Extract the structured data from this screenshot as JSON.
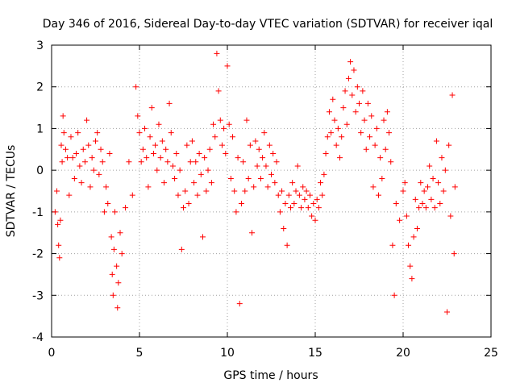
{
  "chart_data": {
    "type": "scatter",
    "title": "Day 346 of 2016, Sidereal Day-to-day VTEC variation (SDTVAR) for receiver iqal",
    "xlabel": "GPS time / hours",
    "ylabel": "SDTVAR / TECUs",
    "xlim": [
      0,
      25
    ],
    "ylim": [
      -4,
      3
    ],
    "xticks": [
      "0",
      "5",
      "10",
      "15",
      "20",
      "25"
    ],
    "yticks": [
      "-4",
      "-3",
      "-2",
      "-1",
      "0",
      "1",
      "2",
      "3"
    ],
    "grid": true,
    "marker": "+",
    "series": [
      {
        "name": "iqal",
        "color": "#ff0000",
        "points": [
          [
            0.2,
            -1.0
          ],
          [
            0.3,
            -0.5
          ],
          [
            0.35,
            -1.3
          ],
          [
            0.4,
            -1.8
          ],
          [
            0.45,
            -2.1
          ],
          [
            0.5,
            -1.2
          ],
          [
            0.55,
            0.6
          ],
          [
            0.6,
            0.2
          ],
          [
            0.65,
            1.3
          ],
          [
            0.7,
            0.9
          ],
          [
            0.8,
            0.5
          ],
          [
            0.9,
            0.3
          ],
          [
            1.0,
            -0.6
          ],
          [
            1.1,
            0.8
          ],
          [
            1.2,
            0.3
          ],
          [
            1.3,
            -0.2
          ],
          [
            1.4,
            0.4
          ],
          [
            1.5,
            0.9
          ],
          [
            1.6,
            0.1
          ],
          [
            1.7,
            -0.3
          ],
          [
            1.8,
            0.5
          ],
          [
            1.9,
            0.2
          ],
          [
            2.0,
            1.2
          ],
          [
            2.1,
            0.6
          ],
          [
            2.2,
            -0.4
          ],
          [
            2.3,
            0.3
          ],
          [
            2.4,
            0.0
          ],
          [
            2.5,
            0.7
          ],
          [
            2.6,
            0.9
          ],
          [
            2.7,
            -0.1
          ],
          [
            2.8,
            0.5
          ],
          [
            2.9,
            0.2
          ],
          [
            3.0,
            -1.0
          ],
          [
            3.1,
            -0.4
          ],
          [
            3.2,
            -0.8
          ],
          [
            3.3,
            0.4
          ],
          [
            3.4,
            -1.6
          ],
          [
            3.45,
            -2.5
          ],
          [
            3.5,
            -3.0
          ],
          [
            3.55,
            -1.9
          ],
          [
            3.6,
            -1.0
          ],
          [
            3.7,
            -2.3
          ],
          [
            3.75,
            -3.3
          ],
          [
            3.8,
            -2.7
          ],
          [
            3.9,
            -1.5
          ],
          [
            4.0,
            -2.0
          ],
          [
            4.2,
            -0.9
          ],
          [
            4.4,
            0.2
          ],
          [
            4.6,
            -0.6
          ],
          [
            4.8,
            2.0
          ],
          [
            4.9,
            1.3
          ],
          [
            5.0,
            0.9
          ],
          [
            5.1,
            0.2
          ],
          [
            5.2,
            0.5
          ],
          [
            5.3,
            1.0
          ],
          [
            5.4,
            0.3
          ],
          [
            5.5,
            -0.4
          ],
          [
            5.6,
            0.8
          ],
          [
            5.7,
            1.5
          ],
          [
            5.8,
            0.4
          ],
          [
            5.9,
            0.6
          ],
          [
            6.0,
            0.0
          ],
          [
            6.1,
            1.1
          ],
          [
            6.2,
            0.3
          ],
          [
            6.3,
            0.7
          ],
          [
            6.4,
            -0.3
          ],
          [
            6.5,
            0.5
          ],
          [
            6.6,
            0.2
          ],
          [
            6.7,
            1.6
          ],
          [
            6.8,
            0.9
          ],
          [
            6.9,
            0.1
          ],
          [
            7.0,
            -0.2
          ],
          [
            7.1,
            0.4
          ],
          [
            7.2,
            -0.6
          ],
          [
            7.3,
            0.0
          ],
          [
            7.4,
            -1.9
          ],
          [
            7.5,
            -0.9
          ],
          [
            7.6,
            -0.5
          ],
          [
            7.7,
            0.6
          ],
          [
            7.8,
            -0.8
          ],
          [
            7.9,
            0.2
          ],
          [
            8.0,
            0.7
          ],
          [
            8.1,
            -0.3
          ],
          [
            8.2,
            0.2
          ],
          [
            8.3,
            -0.6
          ],
          [
            8.4,
            0.4
          ],
          [
            8.5,
            -0.1
          ],
          [
            8.6,
            -1.6
          ],
          [
            8.7,
            0.3
          ],
          [
            8.8,
            -0.5
          ],
          [
            8.9,
            0.0
          ],
          [
            9.0,
            0.5
          ],
          [
            9.1,
            -0.3
          ],
          [
            9.2,
            1.1
          ],
          [
            9.3,
            0.8
          ],
          [
            9.4,
            2.8
          ],
          [
            9.5,
            1.9
          ],
          [
            9.6,
            1.2
          ],
          [
            9.7,
            0.6
          ],
          [
            9.8,
            1.0
          ],
          [
            9.9,
            0.4
          ],
          [
            10.0,
            2.5
          ],
          [
            10.1,
            1.1
          ],
          [
            10.2,
            -0.2
          ],
          [
            10.3,
            0.8
          ],
          [
            10.4,
            -0.5
          ],
          [
            10.5,
            -1.0
          ],
          [
            10.6,
            0.3
          ],
          [
            10.7,
            -3.2
          ],
          [
            10.8,
            -0.8
          ],
          [
            10.9,
            0.2
          ],
          [
            11.0,
            -0.5
          ],
          [
            11.1,
            1.2
          ],
          [
            11.2,
            -0.2
          ],
          [
            11.3,
            0.6
          ],
          [
            11.4,
            -1.5
          ],
          [
            11.5,
            -0.4
          ],
          [
            11.6,
            0.7
          ],
          [
            11.7,
            0.1
          ],
          [
            11.8,
            0.5
          ],
          [
            11.9,
            -0.2
          ],
          [
            12.0,
            0.3
          ],
          [
            12.1,
            0.9
          ],
          [
            12.2,
            0.1
          ],
          [
            12.3,
            -0.4
          ],
          [
            12.4,
            0.6
          ],
          [
            12.5,
            -0.1
          ],
          [
            12.6,
            0.4
          ],
          [
            12.7,
            -0.3
          ],
          [
            12.8,
            0.2
          ],
          [
            12.9,
            -0.6
          ],
          [
            13.0,
            -1.0
          ],
          [
            13.1,
            -0.5
          ],
          [
            13.2,
            -1.4
          ],
          [
            13.3,
            -0.8
          ],
          [
            13.4,
            -1.8
          ],
          [
            13.5,
            -0.6
          ],
          [
            13.6,
            -0.9
          ],
          [
            13.7,
            -0.3
          ],
          [
            13.8,
            -0.8
          ],
          [
            13.9,
            -0.5
          ],
          [
            14.0,
            0.1
          ],
          [
            14.1,
            -0.6
          ],
          [
            14.2,
            -0.9
          ],
          [
            14.3,
            -0.4
          ],
          [
            14.4,
            -0.7
          ],
          [
            14.5,
            -0.5
          ],
          [
            14.6,
            -0.9
          ],
          [
            14.7,
            -0.6
          ],
          [
            14.8,
            -1.1
          ],
          [
            14.9,
            -0.8
          ],
          [
            15.0,
            -1.2
          ],
          [
            15.1,
            -0.7
          ],
          [
            15.2,
            -0.9
          ],
          [
            15.3,
            -0.3
          ],
          [
            15.4,
            -0.6
          ],
          [
            15.5,
            -0.1
          ],
          [
            15.6,
            0.4
          ],
          [
            15.7,
            0.8
          ],
          [
            15.8,
            1.4
          ],
          [
            15.9,
            0.9
          ],
          [
            16.0,
            1.7
          ],
          [
            16.1,
            1.2
          ],
          [
            16.2,
            0.6
          ],
          [
            16.3,
            1.0
          ],
          [
            16.4,
            0.3
          ],
          [
            16.5,
            0.8
          ],
          [
            16.6,
            1.5
          ],
          [
            16.7,
            1.9
          ],
          [
            16.8,
            1.1
          ],
          [
            16.9,
            2.2
          ],
          [
            17.0,
            2.6
          ],
          [
            17.1,
            1.8
          ],
          [
            17.2,
            2.4
          ],
          [
            17.3,
            1.4
          ],
          [
            17.4,
            2.0
          ],
          [
            17.5,
            1.6
          ],
          [
            17.6,
            0.9
          ],
          [
            17.7,
            1.9
          ],
          [
            17.8,
            1.2
          ],
          [
            17.9,
            0.5
          ],
          [
            18.0,
            1.6
          ],
          [
            18.1,
            0.8
          ],
          [
            18.2,
            1.3
          ],
          [
            18.3,
            -0.4
          ],
          [
            18.4,
            0.6
          ],
          [
            18.5,
            1.0
          ],
          [
            18.6,
            -0.6
          ],
          [
            18.7,
            0.3
          ],
          [
            18.8,
            -0.2
          ],
          [
            18.9,
            1.2
          ],
          [
            19.0,
            0.5
          ],
          [
            19.1,
            1.4
          ],
          [
            19.2,
            0.9
          ],
          [
            19.3,
            0.2
          ],
          [
            19.4,
            -1.8
          ],
          [
            19.5,
            -3.0
          ],
          [
            19.6,
            -0.8
          ],
          [
            19.8,
            -1.2
          ],
          [
            20.0,
            -0.5
          ],
          [
            20.1,
            -0.3
          ],
          [
            20.2,
            -1.1
          ],
          [
            20.3,
            -1.8
          ],
          [
            20.4,
            -2.3
          ],
          [
            20.5,
            -2.6
          ],
          [
            20.6,
            -1.6
          ],
          [
            20.7,
            -0.7
          ],
          [
            20.8,
            -1.4
          ],
          [
            20.9,
            -0.9
          ],
          [
            21.0,
            -0.3
          ],
          [
            21.1,
            -0.8
          ],
          [
            21.2,
            -0.5
          ],
          [
            21.3,
            -0.9
          ],
          [
            21.4,
            -0.4
          ],
          [
            21.5,
            0.1
          ],
          [
            21.6,
            -0.7
          ],
          [
            21.7,
            -0.2
          ],
          [
            21.8,
            -0.9
          ],
          [
            21.9,
            0.7
          ],
          [
            22.0,
            -0.3
          ],
          [
            22.1,
            -0.8
          ],
          [
            22.2,
            0.3
          ],
          [
            22.3,
            -0.5
          ],
          [
            22.4,
            0.0
          ],
          [
            22.5,
            -3.4
          ],
          [
            22.6,
            0.6
          ],
          [
            22.7,
            -1.1
          ],
          [
            22.8,
            1.8
          ],
          [
            22.9,
            -2.0
          ],
          [
            22.95,
            -0.4
          ]
        ]
      }
    ]
  }
}
